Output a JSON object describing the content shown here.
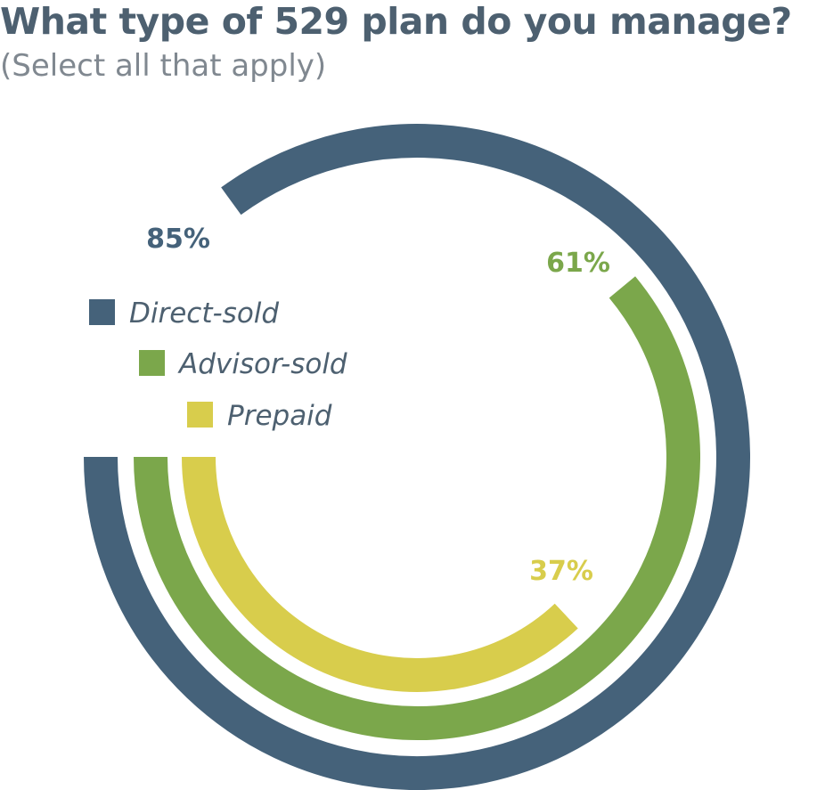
{
  "chart_data": {
    "type": "radial-bar",
    "title": "What type of 529 plan do you manage?",
    "subtitle": "(Select all that apply)",
    "unit": "%",
    "max": 100,
    "series": [
      {
        "name": "Direct-sold",
        "value": 85,
        "label": "85%",
        "color": "#45627a"
      },
      {
        "name": "Advisor-sold",
        "value": 61,
        "label": "61%",
        "color": "#7ba74b"
      },
      {
        "name": "Prepaid",
        "value": 37,
        "label": "37%",
        "color": "#d8cd4c"
      }
    ]
  }
}
